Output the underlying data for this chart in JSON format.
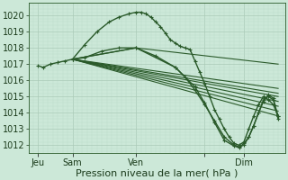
{
  "background_color": "#cce8d8",
  "grid_color_major": "#aacab8",
  "grid_color_minor": "#bbdccb",
  "line_color": "#2a5a2a",
  "xlabel": "Pression niveau de la mer( hPa )",
  "xlabel_fontsize": 8,
  "tick_fontsize": 7,
  "ylim": [
    1011.5,
    1020.8
  ],
  "yticks": [
    1012,
    1013,
    1014,
    1015,
    1016,
    1017,
    1018,
    1019,
    1020
  ],
  "xlim": [
    0.0,
    1.05
  ],
  "xtick_labels": [
    "Jeu",
    "Sam",
    "Ven",
    "",
    "Dim"
  ],
  "xtick_positions": [
    0.04,
    0.18,
    0.44,
    0.72,
    0.88
  ],
  "series": [
    {
      "x": [
        0.04,
        0.06,
        0.09,
        0.12,
        0.15,
        0.18,
        0.23,
        0.28,
        0.33,
        0.37,
        0.41,
        0.44,
        0.46,
        0.48,
        0.5,
        0.52,
        0.54,
        0.56,
        0.58,
        0.6,
        0.62,
        0.64,
        0.66,
        0.68,
        0.7,
        0.72,
        0.74,
        0.76,
        0.78,
        0.8,
        0.82,
        0.84,
        0.86,
        0.88,
        0.9,
        0.92,
        0.94,
        0.96,
        0.98,
        1.0,
        1.02
      ],
      "y": [
        1016.9,
        1016.8,
        1017.0,
        1017.1,
        1017.2,
        1017.3,
        1018.2,
        1019.0,
        1019.6,
        1019.9,
        1020.1,
        1020.2,
        1020.2,
        1020.1,
        1019.9,
        1019.6,
        1019.3,
        1018.9,
        1018.5,
        1018.3,
        1018.1,
        1018.0,
        1017.9,
        1017.2,
        1016.5,
        1015.8,
        1015.0,
        1014.2,
        1013.6,
        1013.0,
        1012.5,
        1012.1,
        1012.0,
        1012.2,
        1013.0,
        1013.8,
        1014.5,
        1015.0,
        1014.8,
        1014.5,
        1013.8
      ],
      "marker": true,
      "lw": 1.0
    },
    {
      "x": [
        0.18,
        0.44,
        1.02
      ],
      "y": [
        1017.3,
        1018.0,
        1017.0
      ],
      "marker": false,
      "lw": 0.8
    },
    {
      "x": [
        0.18,
        1.02
      ],
      "y": [
        1017.3,
        1015.5
      ],
      "marker": false,
      "lw": 0.8
    },
    {
      "x": [
        0.18,
        1.02
      ],
      "y": [
        1017.3,
        1015.2
      ],
      "marker": false,
      "lw": 0.8
    },
    {
      "x": [
        0.18,
        1.02
      ],
      "y": [
        1017.3,
        1015.0
      ],
      "marker": false,
      "lw": 0.8
    },
    {
      "x": [
        0.18,
        1.02
      ],
      "y": [
        1017.3,
        1014.7
      ],
      "marker": false,
      "lw": 0.8
    },
    {
      "x": [
        0.18,
        1.02
      ],
      "y": [
        1017.3,
        1014.4
      ],
      "marker": false,
      "lw": 0.8
    },
    {
      "x": [
        0.18,
        1.02
      ],
      "y": [
        1017.3,
        1014.1
      ],
      "marker": false,
      "lw": 0.8
    },
    {
      "x": [
        0.18,
        1.02
      ],
      "y": [
        1017.3,
        1013.8
      ],
      "marker": false,
      "lw": 0.8
    },
    {
      "x": [
        0.18,
        0.23,
        0.3,
        0.37,
        0.44,
        0.52,
        0.6,
        0.64,
        0.68,
        0.72,
        0.76,
        0.8,
        0.84,
        0.86,
        0.88,
        0.9,
        0.92,
        0.94,
        0.96,
        0.98,
        1.0,
        1.02
      ],
      "y": [
        1017.3,
        1017.4,
        1017.8,
        1018.0,
        1018.0,
        1017.5,
        1016.8,
        1016.2,
        1015.4,
        1014.5,
        1013.5,
        1012.5,
        1012.0,
        1011.9,
        1012.0,
        1012.5,
        1013.2,
        1014.0,
        1014.8,
        1015.0,
        1014.8,
        1013.8
      ],
      "marker": true,
      "lw": 1.0
    },
    {
      "x": [
        0.18,
        0.44,
        0.6,
        0.68,
        0.72,
        0.76,
        0.8,
        0.84,
        0.86,
        0.88,
        0.9,
        0.92,
        0.94,
        0.96,
        0.98,
        1.0,
        1.02
      ],
      "y": [
        1017.3,
        1018.0,
        1016.8,
        1015.6,
        1014.6,
        1013.4,
        1012.3,
        1011.95,
        1011.85,
        1012.1,
        1012.5,
        1013.2,
        1014.0,
        1014.7,
        1015.1,
        1014.9,
        1013.6
      ],
      "marker": true,
      "lw": 1.0
    }
  ]
}
